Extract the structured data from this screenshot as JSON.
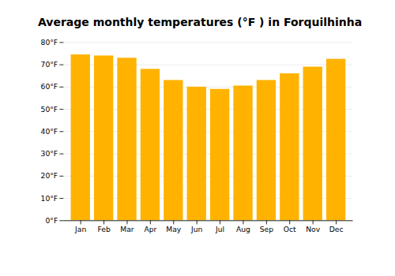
{
  "chart_data": {
    "type": "bar",
    "title": "Average monthly temperatures (°F ) in Forquilhinha",
    "categories": [
      "Jan",
      "Feb",
      "Mar",
      "Apr",
      "May",
      "Jun",
      "Jul",
      "Aug",
      "Sep",
      "Oct",
      "Nov",
      "Dec"
    ],
    "values": [
      74.5,
      74.0,
      73.0,
      68.0,
      63.0,
      60.0,
      59.0,
      60.5,
      63.0,
      66.0,
      69.0,
      72.5
    ],
    "color": "#FFB300",
    "ylim": [
      0,
      80
    ],
    "yticks": [
      {
        "value": 0,
        "label": "0°F"
      },
      {
        "value": 10,
        "label": "10°F"
      },
      {
        "value": 20,
        "label": "20°F"
      },
      {
        "value": 30,
        "label": "30°F"
      },
      {
        "value": 40,
        "label": "40°F"
      },
      {
        "value": 50,
        "label": "50°F"
      },
      {
        "value": 60,
        "label": "60°F"
      },
      {
        "value": 70,
        "label": "70°F"
      },
      {
        "value": 80,
        "label": "80°F"
      }
    ],
    "grid": true
  }
}
